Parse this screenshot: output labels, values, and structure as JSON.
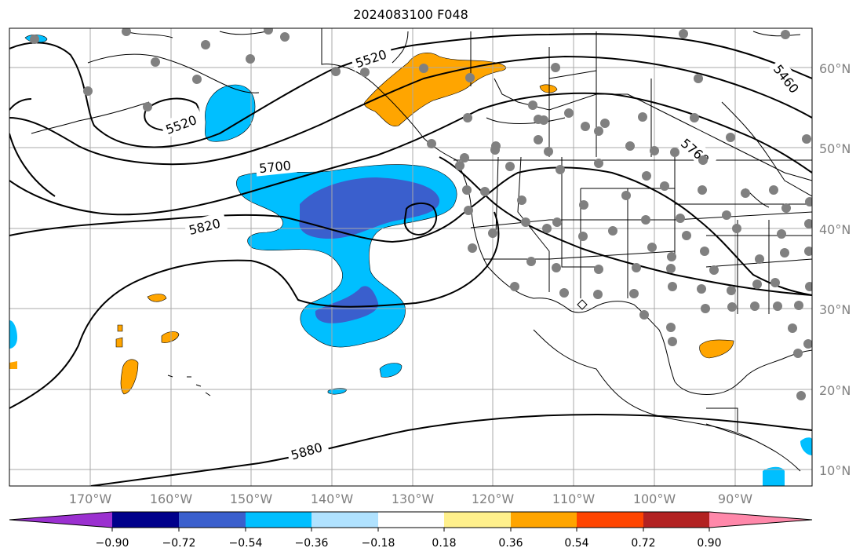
{
  "title": "2024083100 F048",
  "lat_labels": [
    "60°N",
    "50°N",
    "40°N",
    "30°N",
    "20°N",
    "10°N"
  ],
  "lon_labels": [
    "170°W",
    "160°W",
    "150°W",
    "140°W",
    "130°W",
    "120°W",
    "110°W",
    "100°W",
    "90°W"
  ],
  "contour_labels": [
    "5520",
    "5520",
    "5460",
    "5700",
    "5760",
    "5820",
    "5880"
  ],
  "colorbar": {
    "tick_labels": [
      "−0.90",
      "−0.72",
      "−0.54",
      "−0.36",
      "−0.18",
      "0.18",
      "0.36",
      "0.54",
      "0.72",
      "0.90"
    ],
    "colors": [
      "#9b30d0",
      "#00008b",
      "#3a5fcd",
      "#00bfff",
      "#b0e2ff",
      "#ffffff",
      "#fff08c",
      "#ffa500",
      "#ff4500",
      "#b22222",
      "#ff88aa"
    ]
  },
  "colors": {
    "negative_strong": "#3a5fcd",
    "negative": "#00bfff",
    "positive": "#ffa500",
    "station": "#808080",
    "grid": "#a9a9a9"
  }
}
